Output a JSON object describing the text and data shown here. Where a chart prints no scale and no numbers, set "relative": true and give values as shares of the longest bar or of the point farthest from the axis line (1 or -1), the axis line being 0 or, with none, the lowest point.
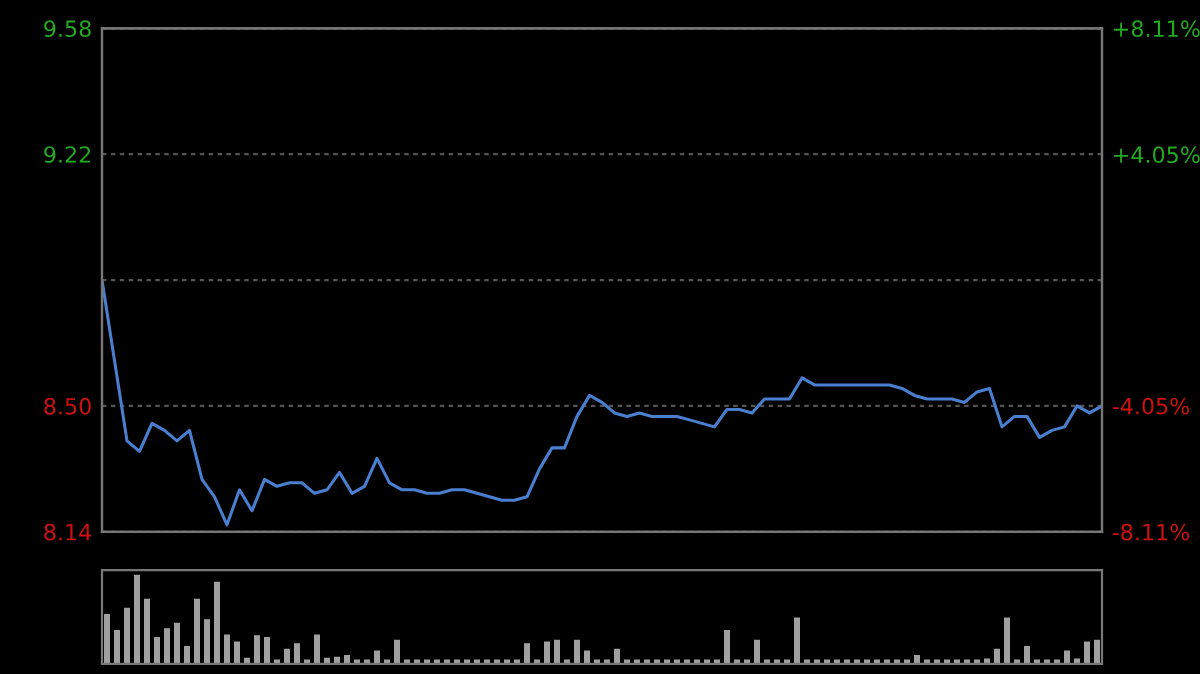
{
  "chart_data": [
    {
      "type": "line",
      "categories": [
        null,
        null,
        null,
        null,
        null,
        null,
        null,
        null,
        null,
        null,
        null,
        null,
        null,
        null,
        null,
        null,
        null,
        null,
        null,
        null,
        null,
        null,
        null,
        null,
        null,
        null,
        null,
        null,
        null,
        null,
        null,
        null,
        null,
        null,
        null,
        null,
        null,
        null,
        null,
        null,
        null,
        null,
        null,
        null,
        null,
        null,
        null,
        null,
        null,
        null,
        null,
        null,
        null,
        null,
        null,
        null,
        null,
        null,
        null,
        null,
        null,
        null,
        null,
        null,
        null,
        null,
        null,
        null,
        null,
        null,
        null,
        null,
        null,
        null,
        null,
        null,
        null,
        null,
        null,
        null,
        null
      ],
      "series": [
        {
          "color": "#4a7fd0",
          "values": [
            8.86,
            8.63,
            8.4,
            8.37,
            8.45,
            8.43,
            8.4,
            8.43,
            8.29,
            8.24,
            8.16,
            8.26,
            8.2,
            8.29,
            8.27,
            8.28,
            8.28,
            8.25,
            8.26,
            8.31,
            8.25,
            8.27,
            8.35,
            8.28,
            8.26,
            8.26,
            8.25,
            8.25,
            8.26,
            8.26,
            8.25,
            8.24,
            8.23,
            8.23,
            8.24,
            8.32,
            8.38,
            8.38,
            8.47,
            8.53,
            8.51,
            8.48,
            8.47,
            8.48,
            8.47,
            8.47,
            8.47,
            8.46,
            8.45,
            8.44,
            8.49,
            8.49,
            8.48,
            8.52,
            8.52,
            8.52,
            8.58,
            8.56,
            8.56,
            8.56,
            8.56,
            8.56,
            8.56,
            8.56,
            8.55,
            8.53,
            8.52,
            8.52,
            8.52,
            8.51,
            8.54,
            8.55,
            8.44,
            8.47,
            8.47,
            8.41,
            8.43,
            8.44,
            8.5,
            8.48,
            8.5
          ]
        }
      ],
      "ylim": [
        8.14,
        9.58
      ],
      "yticks": [
        {
          "value": 8.14,
          "label": "8.14"
        },
        {
          "value": 8.5,
          "label": "8.50"
        },
        {
          "value": 8.86,
          "label": null
        },
        {
          "value": 9.22,
          "label": "9.22"
        },
        {
          "value": 9.58,
          "label": "9.58"
        }
      ],
      "y2lim": [
        -8.11,
        8.11
      ],
      "y2ticks": [
        {
          "value": -8.11,
          "label": "-8.11%"
        },
        {
          "value": -4.05,
          "label": "-4.05%"
        },
        {
          "value": 4.05,
          "label": "+4.05%"
        },
        {
          "value": 8.11,
          "label": "+8.11%"
        }
      ],
      "grid": "y",
      "line_style": "solid"
    },
    {
      "type": "bar",
      "relative": true,
      "categories": [
        null,
        null,
        null,
        null,
        null,
        null,
        null,
        null,
        null,
        null,
        null,
        null,
        null,
        null,
        null,
        null,
        null,
        null,
        null,
        null,
        null,
        null,
        null,
        null,
        null,
        null,
        null,
        null,
        null,
        null,
        null,
        null,
        null,
        null,
        null,
        null,
        null,
        null,
        null,
        null,
        null,
        null,
        null,
        null,
        null,
        null,
        null,
        null,
        null,
        null,
        null,
        null,
        null,
        null,
        null,
        null,
        null,
        null,
        null,
        null,
        null,
        null,
        null,
        null,
        null,
        null,
        null,
        null,
        null,
        null,
        null,
        null,
        null,
        null,
        null,
        null,
        null,
        null,
        null,
        null,
        null,
        null,
        null,
        null,
        null,
        null,
        null,
        null,
        null,
        null,
        null,
        null,
        null,
        null,
        null,
        null,
        null,
        null,
        null,
        null
      ],
      "series": [
        {
          "color": "#a0a0a0",
          "values": [
            0.56,
            0.38,
            0.63,
            1.0,
            0.73,
            0.3,
            0.4,
            0.46,
            0.2,
            0.73,
            0.5,
            0.92,
            0.33,
            0.25,
            0.07,
            0.32,
            0.3,
            0.05,
            0.17,
            0.23,
            0.05,
            0.33,
            0.07,
            0.08,
            0.1,
            0.05,
            0.05,
            0.15,
            0.05,
            0.27,
            0.05,
            0.05,
            0.05,
            0.05,
            0.05,
            0.05,
            0.05,
            0.05,
            0.05,
            0.05,
            0.05,
            0.05,
            0.23,
            0.05,
            0.25,
            0.27,
            0.05,
            0.27,
            0.15,
            0.05,
            0.05,
            0.17,
            0.05,
            0.05,
            0.05,
            0.05,
            0.05,
            0.05,
            0.05,
            0.05,
            0.05,
            0.05,
            0.38,
            0.05,
            0.05,
            0.27,
            0.05,
            0.05,
            0.05,
            0.52,
            0.05,
            0.05,
            0.05,
            0.05,
            0.05,
            0.05,
            0.05,
            0.05,
            0.05,
            0.05,
            0.05,
            0.1,
            0.05,
            0.05,
            0.05,
            0.05,
            0.05,
            0.05,
            0.06,
            0.17,
            0.52,
            0.05,
            0.2,
            0.05,
            0.05,
            0.05,
            0.15,
            0.06,
            0.25,
            0.27
          ]
        }
      ],
      "grid": false
    }
  ]
}
